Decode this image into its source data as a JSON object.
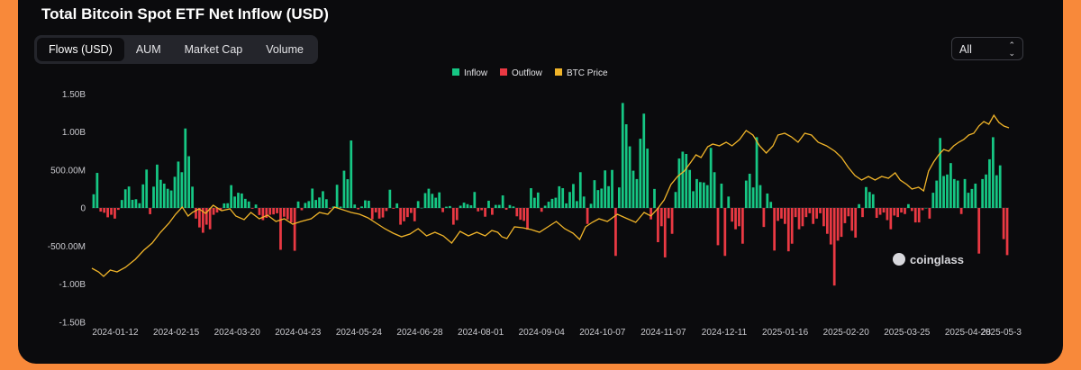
{
  "title": "Total Bitcoin Spot ETF Net Inflow (USD)",
  "tabs": [
    "Flows (USD)",
    "AUM",
    "Market Cap",
    "Volume"
  ],
  "range_select": "All",
  "watermark": "coinglass",
  "colors": {
    "inflow": "#16c784",
    "outflow": "#ea3943",
    "price": "#f0b429",
    "background": "#0b0b0d",
    "page": "#f8893a"
  },
  "chart_data": {
    "type": "bar",
    "title": "Total Bitcoin Spot ETF Net Inflow (USD)",
    "legend": [
      "Inflow",
      "Outflow",
      "BTC Price"
    ],
    "legend_position": "top-center",
    "y_ticks": [
      "1.50B",
      "1.00B",
      "500.00M",
      "0",
      "-500.00M",
      "-1.00B",
      "-1.50B"
    ],
    "ylim": [
      -1500000000,
      1500000000
    ],
    "x_ticks": [
      "2024-01-12",
      "2024-02-15",
      "2024-03-20",
      "2024-04-23",
      "2024-05-24",
      "2024-06-28",
      "2024-08-01",
      "2024-09-04",
      "2024-10-07",
      "2024-11-07",
      "2024-12-11",
      "2025-01-16",
      "2025-02-20",
      "2025-03-25",
      "2025-04-28",
      "2025-05-3"
    ],
    "grid": false,
    "flows_millions": [
      180,
      461,
      -48,
      -63,
      -123,
      -90,
      -140,
      -25,
      105,
      245,
      282,
      107,
      115,
      62,
      310,
      505,
      -82,
      280,
      570,
      370,
      320,
      252,
      230,
      410,
      610,
      470,
      1045,
      680,
      280,
      -140,
      -256,
      -326,
      -220,
      -280,
      -90,
      -60,
      -35,
      60,
      62,
      300,
      150,
      200,
      190,
      120,
      85,
      -10,
      45,
      -93,
      -160,
      -130,
      -90,
      -85,
      -70,
      -550,
      -115,
      -150,
      -190,
      -563,
      85,
      -30,
      66,
      90,
      255,
      105,
      138,
      220,
      115,
      -10,
      20,
      305,
      18,
      490,
      378,
      887,
      45,
      -18,
      20,
      100,
      95,
      -150,
      -58,
      -140,
      -125,
      -40,
      240,
      -10,
      60,
      -220,
      -175,
      -120,
      -66,
      -175,
      90,
      1,
      195,
      253,
      186,
      135,
      205,
      -55,
      17,
      25,
      -220,
      -160,
      30,
      70,
      50,
      35,
      210,
      -45,
      -30,
      -115,
      95,
      -90,
      40,
      40,
      165,
      -23,
      38,
      20,
      -110,
      -155,
      -170,
      -285,
      260,
      134,
      203,
      -50,
      30,
      82,
      120,
      135,
      285,
      260,
      60,
      210,
      315,
      90,
      470,
      150,
      -210,
      55,
      365,
      235,
      255,
      494,
      286,
      500,
      -630,
      270,
      1380,
      1100,
      810,
      490,
      380,
      910,
      1240,
      780,
      -150,
      250,
      -450,
      -240,
      -650,
      -135,
      -340,
      210,
      650,
      740,
      710,
      500,
      220,
      380,
      340,
      335,
      300,
      790,
      470,
      -490,
      320,
      -630,
      150,
      -180,
      -280,
      -240,
      -470,
      360,
      450,
      270,
      930,
      300,
      -250,
      190,
      80,
      -560,
      -170,
      -140,
      -210,
      -570,
      -470,
      -120,
      -280,
      -240,
      -120,
      -70,
      -210,
      -140,
      -70,
      -240,
      -340,
      -480,
      -1020,
      -430,
      -380,
      -200,
      -110,
      -300,
      -390,
      50,
      -120,
      275,
      210,
      180,
      -130,
      -90,
      -60,
      -160,
      -280,
      -100,
      -120,
      -60,
      -80,
      50,
      -40,
      -190,
      -190,
      -30,
      0,
      -140,
      200,
      360,
      920,
      420,
      440,
      590,
      380,
      360,
      -80,
      380,
      200,
      250,
      320,
      -600,
      380,
      440,
      640,
      930,
      430,
      560,
      -410,
      -620
    ],
    "btc_price_note": "BTC Price line on secondary scale (not printed)"
  }
}
